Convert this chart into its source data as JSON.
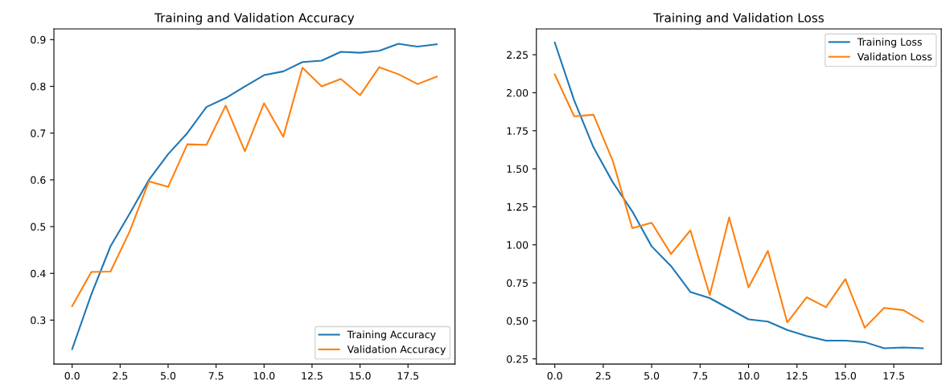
{
  "chart_data": [
    {
      "type": "line",
      "title": "Training and Validation Accuracy",
      "x": [
        0,
        1,
        2,
        3,
        4,
        5,
        6,
        7,
        8,
        9,
        10,
        11,
        12,
        13,
        14,
        15,
        16,
        17,
        18,
        19
      ],
      "series": [
        {
          "name": "Training Accuracy",
          "color": "#1f77b4",
          "values": [
            0.238,
            0.355,
            0.458,
            0.528,
            0.6,
            0.655,
            0.7,
            0.756,
            0.775,
            0.8,
            0.824,
            0.832,
            0.852,
            0.855,
            0.874,
            0.872,
            0.876,
            0.891,
            0.885,
            0.89
          ]
        },
        {
          "name": "Validation Accuracy",
          "color": "#ff7f0e",
          "values": [
            0.33,
            0.403,
            0.404,
            0.49,
            0.597,
            0.585,
            0.676,
            0.675,
            0.759,
            0.661,
            0.764,
            0.692,
            0.84,
            0.8,
            0.816,
            0.781,
            0.841,
            0.826,
            0.805,
            0.821
          ]
        }
      ],
      "xlim": [
        -0.95,
        19.95
      ],
      "xticks": [
        {
          "value": 0,
          "label": "0.0"
        },
        2.5,
        {
          "value": 5,
          "label": "5.0"
        },
        7.5,
        {
          "value": 10,
          "label": "10.0"
        },
        12.5,
        {
          "value": 15,
          "label": "15.0"
        },
        17.5
      ],
      "ylim": [
        0.206,
        0.923
      ],
      "yticks": [
        0.3,
        0.4,
        0.5,
        0.6,
        0.7,
        0.8,
        0.9
      ],
      "legend": "lower right",
      "grid": false,
      "line_style": "solid",
      "marker": "none"
    },
    {
      "type": "line",
      "title": "Training and Validation Loss",
      "x": [
        0,
        1,
        2,
        3,
        4,
        5,
        6,
        7,
        8,
        9,
        10,
        11,
        12,
        13,
        14,
        15,
        16,
        17,
        18,
        19
      ],
      "series": [
        {
          "name": "Training Loss",
          "color": "#1f77b4",
          "values": [
            2.33,
            1.95,
            1.64,
            1.41,
            1.22,
            0.99,
            0.86,
            0.69,
            0.65,
            0.58,
            0.51,
            0.495,
            0.44,
            0.4,
            0.37,
            0.37,
            0.36,
            0.32,
            0.325,
            0.32
          ]
        },
        {
          "name": "Validation Loss",
          "color": "#ff7f0e",
          "values": [
            2.12,
            1.845,
            1.855,
            1.55,
            1.11,
            1.145,
            0.94,
            1.095,
            0.67,
            1.18,
            0.72,
            0.96,
            0.49,
            0.655,
            0.59,
            0.775,
            0.455,
            0.585,
            0.57,
            0.495
          ]
        }
      ],
      "xlim": [
        -0.95,
        19.95
      ],
      "xticks": [
        {
          "value": 0,
          "label": "0.0"
        },
        2.5,
        {
          "value": 5,
          "label": "5.0"
        },
        7.5,
        {
          "value": 10,
          "label": "10.0"
        },
        12.5,
        {
          "value": 15,
          "label": "15.0"
        },
        17.5
      ],
      "ylim": [
        0.216,
        2.42
      ],
      "yticks": [
        0.25,
        {
          "value": 0.5,
          "label": "0.50"
        },
        0.75,
        {
          "value": 1.0,
          "label": "1.00"
        },
        1.25,
        {
          "value": 1.5,
          "label": "1.50"
        },
        1.75,
        {
          "value": 2.0,
          "label": "2.00"
        },
        2.25
      ],
      "legend": "upper right",
      "grid": false,
      "line_style": "solid",
      "marker": "none"
    }
  ]
}
